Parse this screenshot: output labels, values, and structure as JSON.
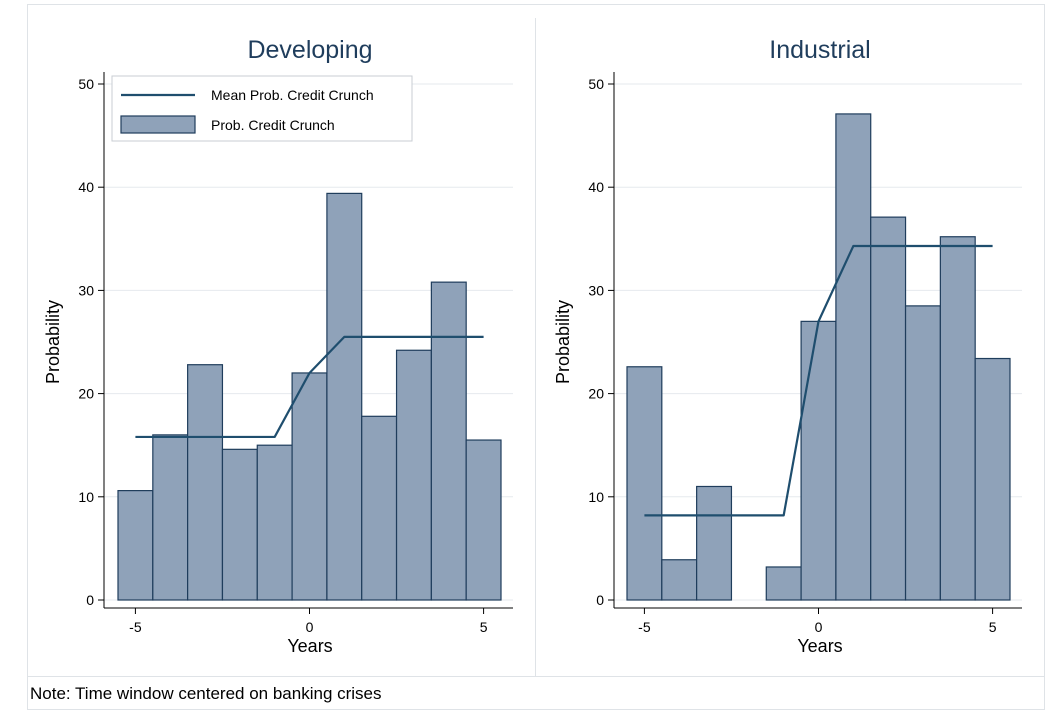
{
  "note": "Note: Time window centered on banking crises",
  "colors": {
    "bar_fill": "#8fa2b9",
    "bar_edge": "#1f3d5c",
    "line": "#1f4e6e",
    "grid": "#e6eaee"
  },
  "chart_data": [
    {
      "type": "bar",
      "title": "Developing",
      "xlabel": "Years",
      "ylabel": "Probability",
      "xlim": [
        -6,
        6
      ],
      "ylim": [
        0,
        50
      ],
      "xticks": [
        -5,
        0,
        5
      ],
      "yticks": [
        0,
        10,
        20,
        30,
        40,
        50
      ],
      "grid": true,
      "legend": {
        "placement": "top-left",
        "entries": [
          "Mean Prob. Credit Crunch",
          "Prob. Credit Crunch"
        ]
      },
      "bars": {
        "name": "Prob. Credit Crunch",
        "x": [
          -5,
          -4,
          -3,
          -2,
          -1,
          0,
          1,
          2,
          3,
          4,
          5
        ],
        "values": [
          10.6,
          16.0,
          22.8,
          14.6,
          15.0,
          22.0,
          39.4,
          17.8,
          24.2,
          30.8,
          15.5
        ]
      },
      "line": {
        "name": "Mean Prob. Credit Crunch",
        "x": [
          -5,
          -4,
          -3,
          -2,
          -1,
          0,
          1,
          2,
          3,
          4,
          5
        ],
        "y": [
          15.8,
          15.8,
          15.8,
          15.8,
          15.8,
          22.0,
          25.5,
          25.5,
          25.5,
          25.5,
          25.5
        ]
      }
    },
    {
      "type": "bar",
      "title": "Industrial",
      "xlabel": "Years",
      "ylabel": "Probability",
      "xlim": [
        -6,
        6
      ],
      "ylim": [
        0,
        50
      ],
      "xticks": [
        -5,
        0,
        5
      ],
      "yticks": [
        0,
        10,
        20,
        30,
        40,
        50
      ],
      "grid": true,
      "bars": {
        "name": "Prob. Credit Crunch",
        "x": [
          -5,
          -4,
          -3,
          -1,
          0,
          1,
          2,
          3,
          4,
          5
        ],
        "values": [
          22.6,
          3.9,
          11.0,
          3.2,
          27.0,
          47.1,
          37.1,
          28.5,
          35.2,
          23.4
        ]
      },
      "line": {
        "name": "Mean Prob. Credit Crunch",
        "x": [
          -5,
          -4,
          -3,
          -2,
          -1,
          0,
          1,
          2,
          3,
          4,
          5
        ],
        "y": [
          8.2,
          8.2,
          8.2,
          8.2,
          8.2,
          27.0,
          34.3,
          34.3,
          34.3,
          34.3,
          34.3
        ]
      }
    }
  ]
}
